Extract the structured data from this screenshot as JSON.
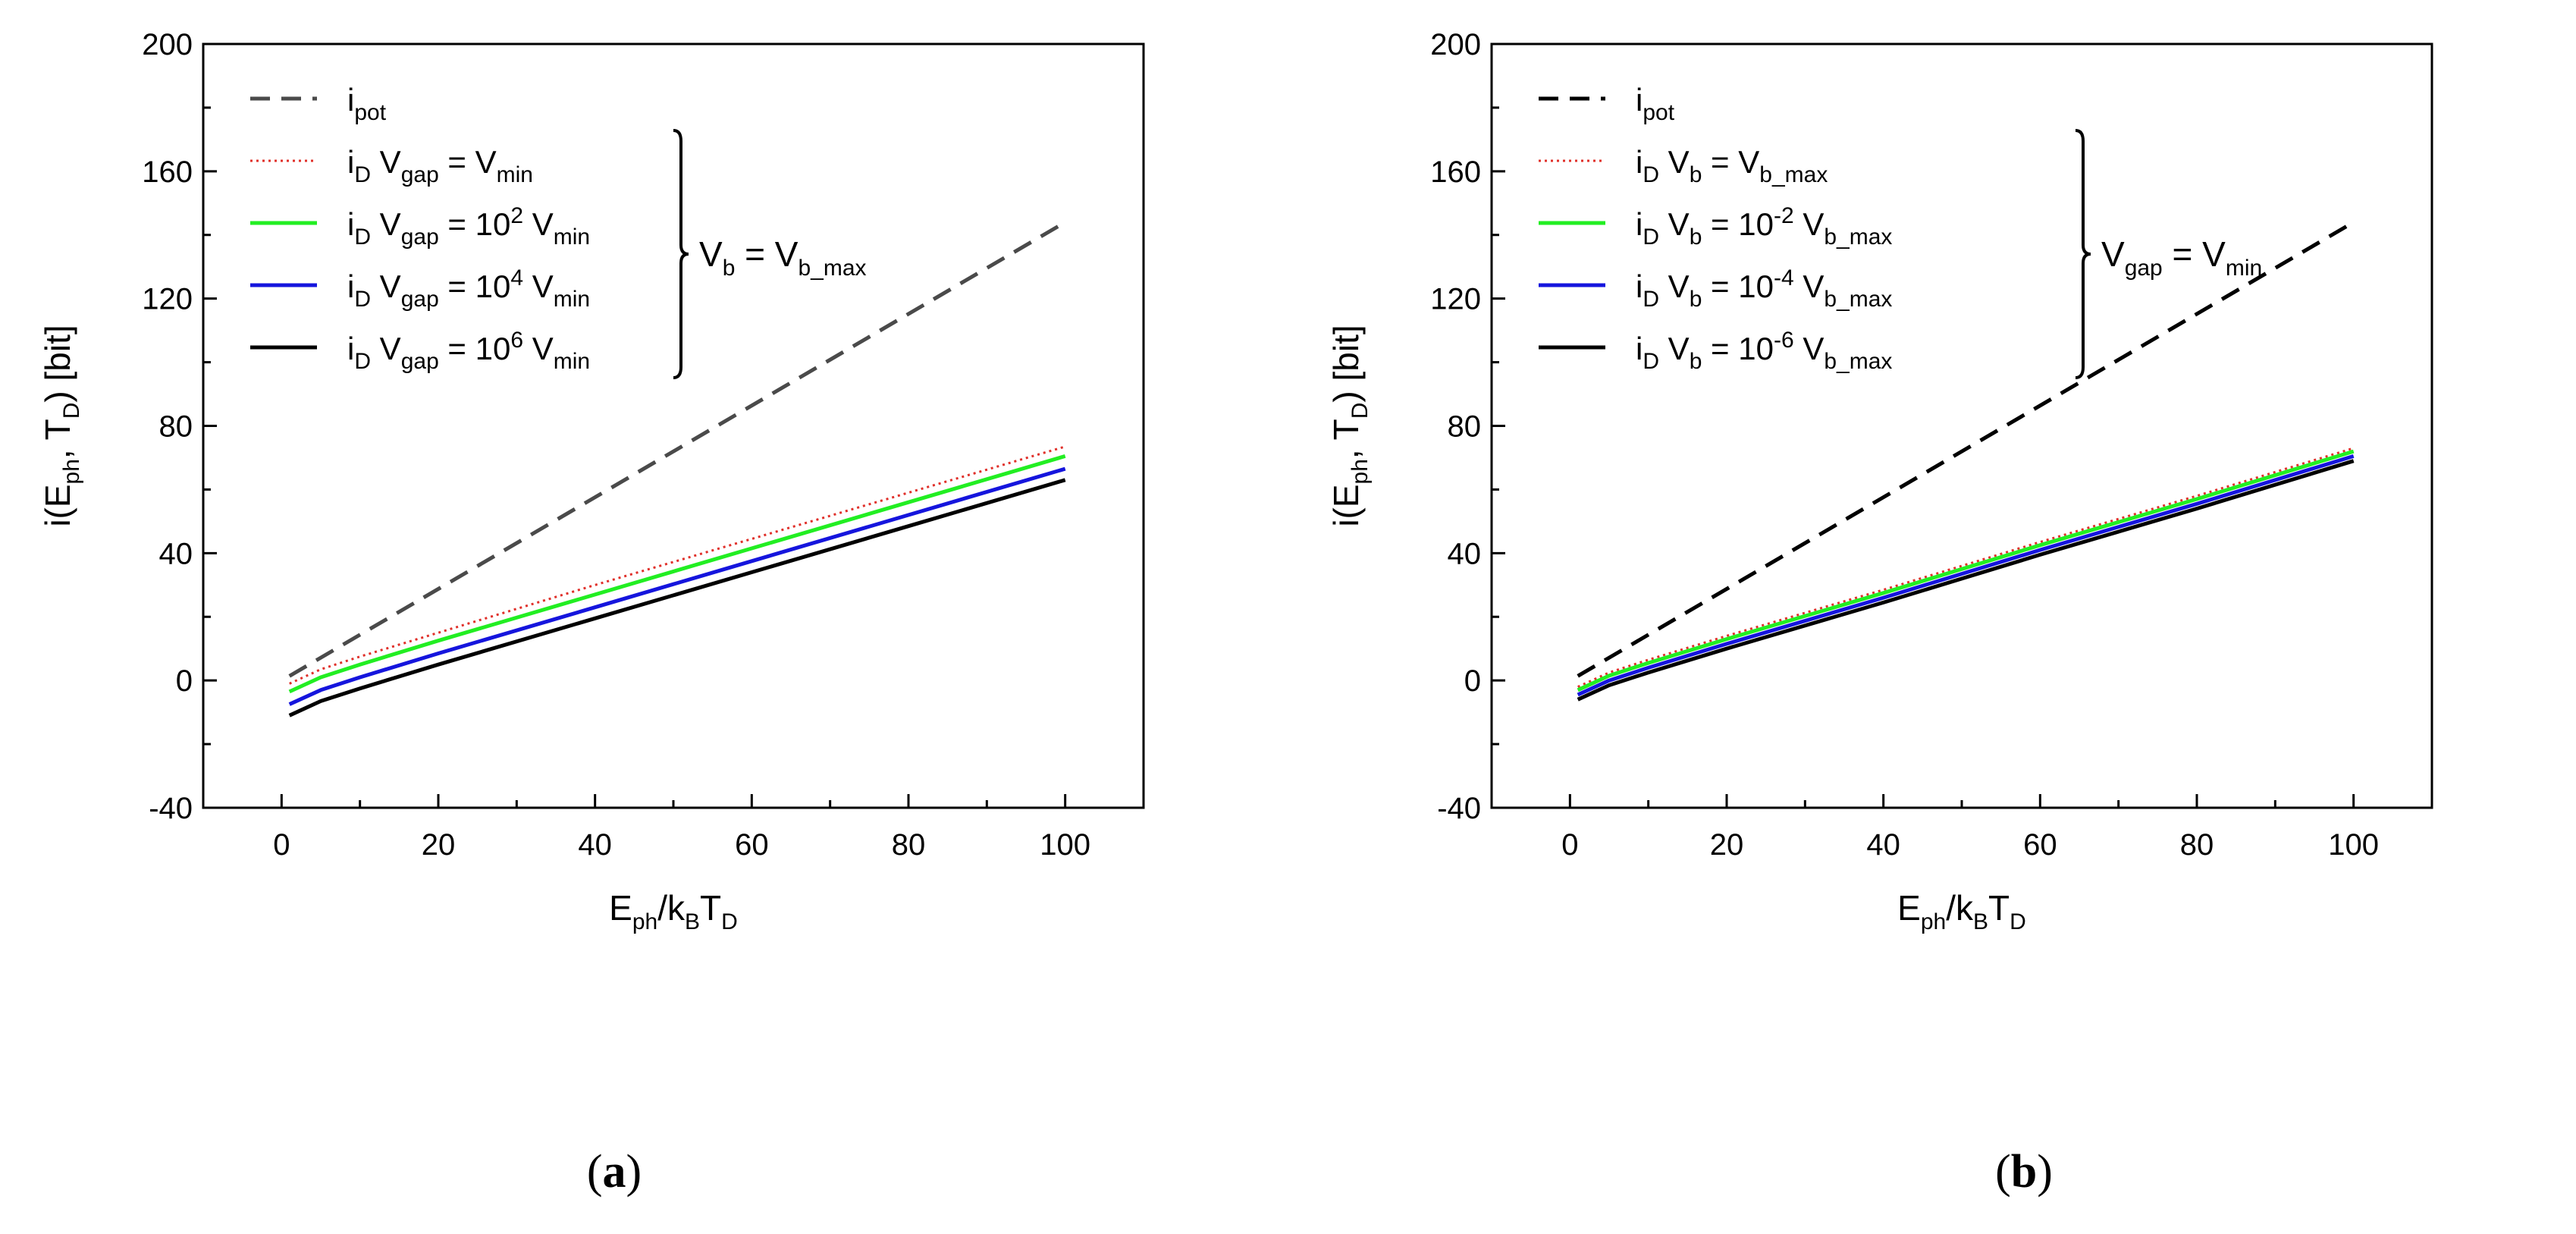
{
  "figure": {
    "panels": [
      {
        "id": "a",
        "label_open": "(",
        "label_letter": "a",
        "label_close": ")"
      },
      {
        "id": "b",
        "label_open": "(",
        "label_letter": "b",
        "label_close": ")"
      }
    ]
  },
  "chart_data": [
    {
      "type": "line",
      "panel": "a",
      "xlabel": {
        "base": "E",
        "sub1": "ph",
        "mid": "/k",
        "sub2": "B",
        "mid2": "T",
        "sub3": "D"
      },
      "ylabel": {
        "p1": "i(E",
        "s1": "ph",
        "p2": ", T",
        "s2": "D",
        "p3": ") [bit]"
      },
      "xlim": [
        -10,
        110
      ],
      "ylim": [
        -40,
        200
      ],
      "xticks": [
        0,
        20,
        40,
        60,
        80,
        100
      ],
      "yticks": [
        -40,
        0,
        40,
        80,
        120,
        160,
        200
      ],
      "series": [
        {
          "name": "i_pot",
          "color": "#4a4a4a",
          "style": "dashed",
          "x": [
            1,
            100
          ],
          "y": [
            1.4,
            144
          ]
        },
        {
          "name": "i_D V_gap = V_min",
          "color": "#e0302a",
          "style": "dotted",
          "x": [
            1,
            5,
            10,
            20,
            40,
            60,
            80,
            100
          ],
          "y": [
            -1,
            3.5,
            7.5,
            15,
            30,
            44.5,
            59,
            73.5
          ]
        },
        {
          "name": "i_D V_gap = 10^2 V_min",
          "color": "#22ee22",
          "style": "solid",
          "x": [
            1,
            5,
            10,
            20,
            40,
            60,
            80,
            100
          ],
          "y": [
            -3.5,
            1,
            5,
            12.5,
            27,
            41.5,
            56,
            70.5
          ]
        },
        {
          "name": "i_D V_gap = 10^4 V_min",
          "color": "#1515dd",
          "style": "solid",
          "x": [
            1,
            5,
            10,
            20,
            40,
            60,
            80,
            100
          ],
          "y": [
            -7.5,
            -3,
            1,
            8.5,
            23,
            37.5,
            52,
            66.5
          ]
        },
        {
          "name": "i_D V_gap = 10^6 V_min",
          "color": "#000000",
          "style": "solid",
          "x": [
            1,
            5,
            10,
            20,
            40,
            60,
            80,
            100
          ],
          "y": [
            -11,
            -6.5,
            -2.5,
            5,
            19.5,
            34,
            48.5,
            63
          ]
        }
      ],
      "legend": {
        "placement": "top-left",
        "entries": [
          {
            "color": "#4a4a4a",
            "style": "dashed",
            "t1": "i",
            "s1": "pot"
          },
          {
            "color": "#e0302a",
            "style": "dotted",
            "t1": "i",
            "s1": "D",
            "t2": "  V",
            "s2": "gap",
            "t3": " = V",
            "s3": "min"
          },
          {
            "color": "#22ee22",
            "style": "solid",
            "t1": "i",
            "s1": "D",
            "t2": "  V",
            "s2": "gap",
            "t3": " = 10",
            "sup": "2",
            "t4": " V",
            "s3": "min"
          },
          {
            "color": "#1515dd",
            "style": "solid",
            "t1": "i",
            "s1": "D",
            "t2": "  V",
            "s2": "gap",
            "t3": " = 10",
            "sup": "4",
            "t4": " V",
            "s3": "min"
          },
          {
            "color": "#000000",
            "style": "solid",
            "t1": "i",
            "s1": "D",
            "t2": "  V",
            "s2": "gap",
            "t3": " = 10",
            "sup": "6",
            "t4": " V",
            "s3": "min"
          }
        ],
        "brace": {
          "p1": "V",
          "s1": "b",
          "p2": " = V",
          "s2": "b_max"
        }
      }
    },
    {
      "type": "line",
      "panel": "b",
      "xlabel": {
        "base": "E",
        "sub1": "ph",
        "mid": "/k",
        "sub2": "B",
        "mid2": "T",
        "sub3": "D"
      },
      "ylabel": {
        "p1": "i(E",
        "s1": "ph",
        "p2": ", T",
        "s2": "D",
        "p3": ") [bit]"
      },
      "xlim": [
        -10,
        110
      ],
      "ylim": [
        -40,
        200
      ],
      "xticks": [
        0,
        20,
        40,
        60,
        80,
        100
      ],
      "yticks": [
        -40,
        0,
        40,
        80,
        120,
        160,
        200
      ],
      "series": [
        {
          "name": "i_pot",
          "color": "#000000",
          "style": "dashed",
          "x": [
            1,
            100
          ],
          "y": [
            1.4,
            144
          ]
        },
        {
          "name": "i_D V_b = V_b_max",
          "color": "#e0302a",
          "style": "dotted",
          "x": [
            1,
            5,
            10,
            20,
            40,
            60,
            80,
            100
          ],
          "y": [
            -2,
            2.5,
            6.5,
            14,
            28.5,
            43.5,
            58,
            73
          ]
        },
        {
          "name": "i_D V_b = 10^-2 V_b_max",
          "color": "#22ee22",
          "style": "solid",
          "x": [
            1,
            5,
            10,
            20,
            40,
            60,
            80,
            100
          ],
          "y": [
            -3,
            1.5,
            5.5,
            13,
            27.5,
            42.5,
            57,
            72
          ]
        },
        {
          "name": "i_D V_b = 10^-4 V_b_max",
          "color": "#1515dd",
          "style": "solid",
          "x": [
            1,
            5,
            10,
            20,
            40,
            60,
            80,
            100
          ],
          "y": [
            -4.5,
            0,
            4,
            11.5,
            26,
            41,
            55.5,
            70.5
          ]
        },
        {
          "name": "i_D V_b = 10^-6 V_b_max",
          "color": "#000000",
          "style": "solid",
          "x": [
            1,
            5,
            10,
            20,
            40,
            60,
            80,
            100
          ],
          "y": [
            -6,
            -1.5,
            2.5,
            10,
            24.5,
            39.5,
            54,
            69
          ]
        }
      ],
      "legend": {
        "placement": "top-left",
        "entries": [
          {
            "color": "#000000",
            "style": "dashed",
            "t1": "i",
            "s1": "pot"
          },
          {
            "color": "#e0302a",
            "style": "dotted",
            "t1": "i",
            "s1": "D",
            "t2": "  V",
            "s2": "b",
            "t3": " =  V",
            "s3": "b_max"
          },
          {
            "color": "#22ee22",
            "style": "solid",
            "t1": "i",
            "s1": "D",
            "t2": "  V",
            "s2": "b",
            "t3": " = 10",
            "sup": "-2",
            "t4": " V",
            "s3": "b_max"
          },
          {
            "color": "#1515dd",
            "style": "solid",
            "t1": "i",
            "s1": "D",
            "t2": "  V",
            "s2": "b",
            "t3": " = 10",
            "sup": "-4",
            "t4": " V",
            "s3": "b_max"
          },
          {
            "color": "#000000",
            "style": "solid",
            "t1": "i",
            "s1": "D",
            "t2": "  V",
            "s2": "b",
            "t3": " = 10",
            "sup": "-6",
            "t4": " V",
            "s3": "b_max"
          }
        ],
        "brace": {
          "p1": "V",
          "s1": "gap",
          "p2": " =  V",
          "s2": "min"
        }
      }
    }
  ]
}
